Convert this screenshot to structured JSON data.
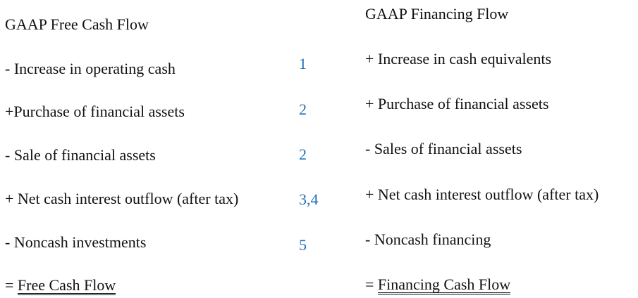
{
  "left": {
    "title": "GAAP Free Cash Flow",
    "rows": [
      {
        "label": "- Increase in operating cash",
        "ref": "1"
      },
      {
        "label": "+Purchase of financial assets",
        "ref": "2"
      },
      {
        "label": "- Sale of financial assets",
        "ref": "2"
      },
      {
        "label": "+ Net cash interest outflow (after tax)",
        "ref": "3,4"
      },
      {
        "label": "- Noncash investments",
        "ref": "5"
      }
    ],
    "total_prefix": "= ",
    "total_label": "Free Cash Flow"
  },
  "right": {
    "title": "GAAP Financing Flow",
    "rows": [
      {
        "label": "+ Increase in cash equivalents"
      },
      {
        "label": "+ Purchase of financial assets"
      },
      {
        "label": "- Sales of financial assets"
      },
      {
        "label": "+ Net cash interest outflow (after tax)"
      },
      {
        "label": "- Noncash financing"
      }
    ],
    "total_prefix": "= ",
    "total_label": "Financing Cash Flow"
  },
  "colors": {
    "text": "#111111",
    "reference": "#1f6fb5"
  }
}
